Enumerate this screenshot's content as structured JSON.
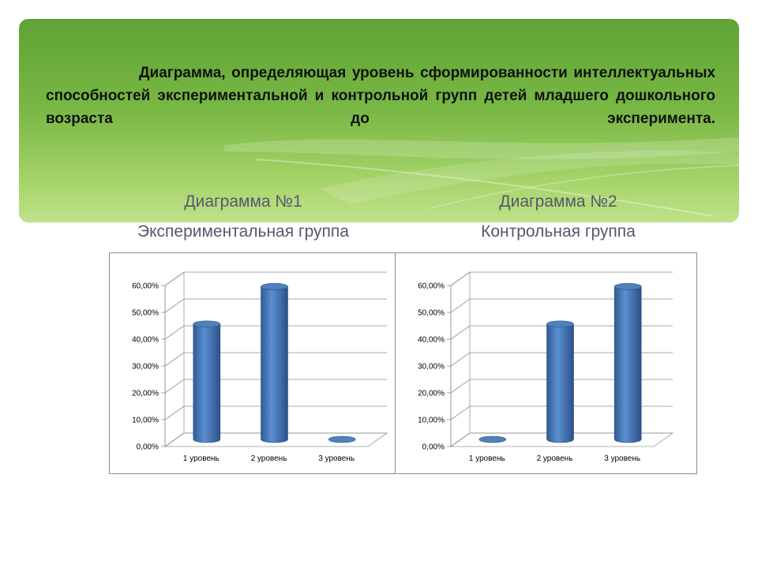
{
  "title": "Диаграмма, определяющая уровень сформированности интеллектуальных способностей экспериментальной и контрольной групп детей младшего дошкольного возраста до эксперимента.",
  "chart_data": [
    {
      "type": "bar",
      "title": "Диаграмма №1",
      "subtitle": "Экспериментальная группа",
      "categories": [
        "1 уровень",
        "2 уровень",
        "3 уровень"
      ],
      "values": [
        0.43,
        0.57,
        0.0
      ],
      "ylim": [
        0,
        0.6
      ],
      "yticks": [
        "0,00%",
        "10,00%",
        "20,00%",
        "30,00%",
        "40,00%",
        "50,00%",
        "60,00%"
      ],
      "grid": true,
      "colors": {
        "bar": "#4f81bd"
      }
    },
    {
      "type": "bar",
      "title": "Диаграмма №2",
      "subtitle": "Контрольная группа",
      "categories": [
        "1 уровень",
        "2 уровень",
        "3 уровень"
      ],
      "values": [
        0.0,
        0.43,
        0.57
      ],
      "ylim": [
        0,
        0.6
      ],
      "yticks": [
        "0,00%",
        "10,00%",
        "20,00%",
        "30,00%",
        "40,00%",
        "50,00%",
        "60,00%"
      ],
      "grid": true,
      "colors": {
        "bar": "#4f81bd"
      }
    }
  ]
}
